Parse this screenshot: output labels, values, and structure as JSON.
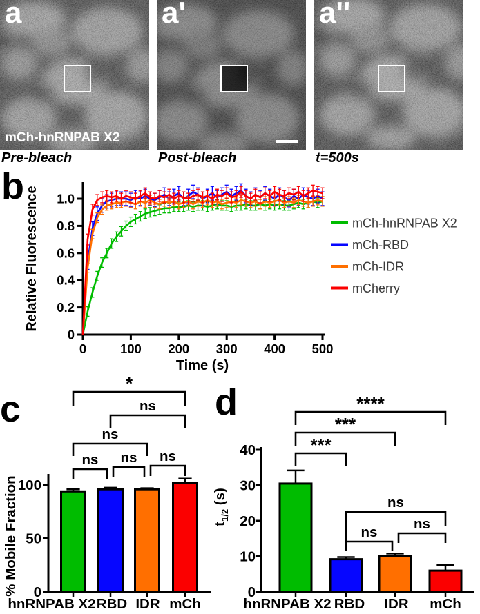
{
  "colors": {
    "green": "#00bc00",
    "blue": "#0606ff",
    "orange": "#ff6f00",
    "red": "#fb0000",
    "axis": "#000000",
    "legend_text": "#3a3a3a"
  },
  "micro_row": {
    "panels": [
      {
        "letter": "a",
        "overlay_label": "mCh-hnRNPAB X2",
        "caption": "Pre-bleach"
      },
      {
        "letter": "a'",
        "overlay_label": "",
        "caption": "Post-bleach"
      },
      {
        "letter": "a''",
        "overlay_label": "",
        "caption": "t=500s"
      }
    ]
  },
  "chart_data": [
    {
      "id": "frap",
      "type": "line",
      "panel_letter": "b",
      "xlabel": "Time (s)",
      "ylabel": "Relative Fluorescence",
      "xlim": [
        0,
        500
      ],
      "ylim": [
        0,
        1.12
      ],
      "xticks": [
        0,
        100,
        200,
        300,
        400,
        500
      ],
      "yticks": [
        0,
        0.2,
        0.4,
        0.6,
        0.8,
        1.0
      ],
      "ytick_labels": [
        "0",
        "0.2",
        "0.4",
        "0.6",
        "0.8",
        "1.0"
      ],
      "grid": false,
      "legend_position": "right",
      "x": [
        0,
        10,
        20,
        30,
        40,
        50,
        60,
        70,
        80,
        90,
        100,
        110,
        120,
        130,
        140,
        150,
        160,
        170,
        180,
        190,
        200,
        210,
        220,
        230,
        240,
        250,
        260,
        270,
        280,
        290,
        300,
        310,
        320,
        330,
        340,
        350,
        360,
        370,
        380,
        390,
        400,
        410,
        420,
        430,
        440,
        450,
        460,
        470,
        480,
        490,
        500
      ],
      "series": [
        {
          "name": "mCh-hnRNPAB X2",
          "color": "#00bc00",
          "error": 0.035,
          "values": [
            0,
            0.17,
            0.31,
            0.43,
            0.53,
            0.6,
            0.67,
            0.72,
            0.76,
            0.8,
            0.83,
            0.85,
            0.87,
            0.89,
            0.9,
            0.91,
            0.92,
            0.93,
            0.93,
            0.94,
            0.94,
            0.94,
            0.95,
            0.94,
            0.95,
            0.95,
            0.94,
            0.95,
            0.96,
            0.95,
            0.95,
            0.94,
            0.95,
            0.95,
            0.96,
            0.95,
            0.95,
            0.96,
            0.95,
            0.96,
            0.95,
            0.96,
            0.95,
            0.95,
            0.96,
            0.97,
            0.96,
            0.97,
            0.98,
            0.97,
            0.98
          ]
        },
        {
          "name": "mCh-RBD",
          "color": "#0606ff",
          "error": 0.05,
          "values": [
            0,
            0.53,
            0.78,
            0.89,
            0.95,
            0.98,
            0.99,
            1.0,
            1.0,
            1.0,
            0.99,
            1.01,
            1.0,
            1.02,
            1.0,
            0.99,
            1.01,
            1.03,
            1.0,
            1.02,
            1.04,
            1.0,
            1.02,
            1.05,
            1.03,
            1.0,
            1.02,
            1.04,
            1.01,
            1.03,
            1.05,
            1.02,
            1.04,
            1.06,
            1.02,
            1.0,
            1.03,
            1.01,
            1.04,
            1.02,
            1.0,
            1.03,
            1.01,
            0.99,
            1.02,
            1.0,
            1.03,
            1.01,
            1.0,
            1.02,
            1.0
          ]
        },
        {
          "name": "mCh-IDR",
          "color": "#ff6f00",
          "error": 0.035,
          "values": [
            0,
            0.49,
            0.74,
            0.86,
            0.92,
            0.95,
            0.96,
            0.97,
            0.97,
            0.98,
            0.97,
            0.96,
            0.98,
            0.97,
            0.99,
            0.97,
            0.96,
            0.98,
            0.97,
            0.98,
            0.96,
            0.97,
            0.98,
            0.96,
            0.98,
            0.97,
            0.99,
            0.97,
            0.98,
            0.96,
            0.97,
            0.98,
            0.97,
            0.99,
            0.98,
            0.97,
            0.98,
            0.96,
            0.98,
            0.97,
            0.98,
            0.99,
            0.97,
            0.98,
            0.97,
            0.99,
            0.98,
            0.97,
            0.98,
            0.99,
            0.98
          ]
        },
        {
          "name": "mCherry",
          "color": "#fb0000",
          "error": 0.04,
          "values": [
            0,
            0.7,
            0.92,
            0.99,
            1.01,
            1.02,
            1.01,
            1.02,
            1.0,
            1.02,
            1.01,
            1.0,
            1.02,
            1.04,
            1.01,
            1.0,
            1.02,
            1.01,
            1.03,
            1.0,
            1.02,
            1.01,
            1.0,
            1.02,
            1.03,
            1.01,
            1.02,
            1.0,
            1.03,
            1.02,
            1.04,
            1.01,
            1.02,
            1.05,
            1.02,
            1.0,
            1.03,
            1.01,
            1.04,
            1.02,
            1.05,
            1.03,
            1.02,
            1.04,
            1.03,
            1.05,
            1.02,
            1.04,
            1.06,
            1.05,
            1.04
          ]
        }
      ]
    },
    {
      "id": "mobile",
      "type": "bar",
      "panel_letter": "c",
      "ylabel": "% Mobile Fraction",
      "ylim": [
        0,
        110
      ],
      "yticks": [
        0,
        50,
        100
      ],
      "categories": [
        "hnRNPAB X2",
        "RBD",
        "IDR",
        "mCh"
      ],
      "values": [
        94,
        96,
        96,
        102
      ],
      "errors": [
        2,
        1.5,
        1,
        4
      ],
      "colors": [
        "#00bc00",
        "#0606ff",
        "#ff6f00",
        "#fb0000"
      ],
      "significance": [
        {
          "a": 0,
          "b": 3,
          "label": "*",
          "y": 23,
          "dl": 21,
          "dr": 21
        },
        {
          "a": 1,
          "b": 3,
          "label": "ns",
          "y": 57,
          "dl": 19,
          "dr": 19
        },
        {
          "a": 0,
          "b": 2,
          "label": "ns",
          "y": 98,
          "dl": 18,
          "dr": 18
        },
        {
          "a": 0,
          "b": 1,
          "label": "ns",
          "y": 135,
          "dl": 15,
          "dr": 15,
          "x2off": -5
        },
        {
          "a": 1,
          "b": 2,
          "label": "ns",
          "y": 132,
          "dl": 15,
          "dr": 15,
          "x1off": 4,
          "x2off": -4
        },
        {
          "a": 2,
          "b": 3,
          "label": "ns",
          "y": 130,
          "dl": 15,
          "dr": 15,
          "x1off": 5
        }
      ]
    },
    {
      "id": "half",
      "type": "bar",
      "panel_letter": "d",
      "ylabel": "t1/2 (s)",
      "ylabel_parts": [
        {
          "t": "t"
        },
        {
          "t": "1/2",
          "sub": true
        },
        {
          "t": " (s)"
        }
      ],
      "ylim": [
        0,
        42
      ],
      "yticks": [
        0,
        10,
        20,
        30,
        40
      ],
      "categories": [
        "hnRNPAB X2",
        "RBD",
        "IDR",
        "mCh"
      ],
      "values": [
        30.5,
        9.2,
        10,
        6
      ],
      "errors": [
        3.7,
        0.6,
        0.8,
        1.6
      ],
      "colors": [
        "#00bc00",
        "#0606ff",
        "#ff6f00",
        "#fb0000"
      ],
      "significance": [
        {
          "a": 0,
          "b": 3,
          "label": "****",
          "y": 52,
          "dl": 19,
          "dr": 19
        },
        {
          "a": 0,
          "b": 2,
          "label": "***",
          "y": 82,
          "dl": 19,
          "dr": 19
        },
        {
          "a": 0,
          "b": 1,
          "label": "***",
          "y": 112,
          "dl": 19,
          "dr": 19
        },
        {
          "a": 1,
          "b": 3,
          "label": "ns",
          "y": 197,
          "dl": 56,
          "dr": 20
        },
        {
          "a": 1,
          "b": 2,
          "label": "ns",
          "y": 240,
          "dl": 13,
          "dr": 13,
          "x2off": -4
        },
        {
          "a": 2,
          "b": 3,
          "label": "ns",
          "y": 228,
          "dl": 14,
          "dr": 14,
          "x1off": 5
        }
      ]
    }
  ]
}
